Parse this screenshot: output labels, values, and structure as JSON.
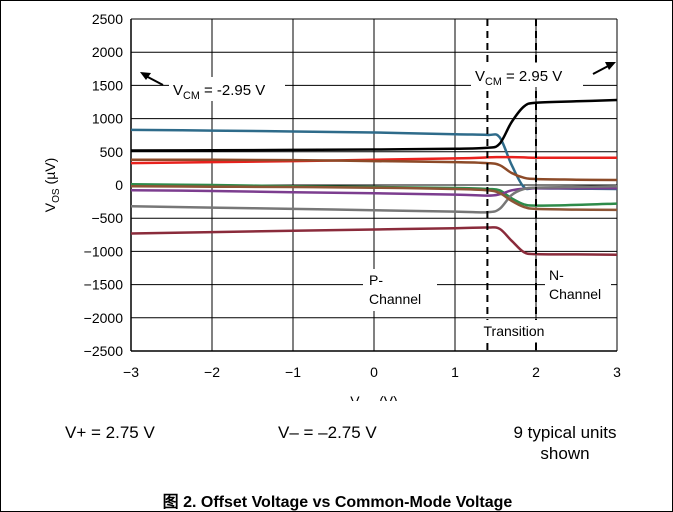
{
  "chart_data": {
    "type": "line",
    "xlabel": {
      "main": "V",
      "sub": "CM",
      "unit": " (V)"
    },
    "ylabel": {
      "main": "V",
      "sub": "OS",
      "unit": " (µV)"
    },
    "xlim": [
      -3,
      3
    ],
    "ylim": [
      -2500,
      2500
    ],
    "xticks": [
      -3,
      -2,
      -1,
      0,
      1,
      2,
      3
    ],
    "xtick_labels": [
      "−3",
      "−2",
      "−1",
      "0",
      "1",
      "2",
      "3"
    ],
    "yticks": [
      -2500,
      -2000,
      -1500,
      -1000,
      -500,
      0,
      500,
      1000,
      1500,
      2000,
      2500
    ],
    "ytick_labels": [
      "−2500",
      "−2000",
      "−1500",
      "−1000",
      "−500",
      "0",
      "500",
      "1000",
      "1500",
      "2000",
      "2500"
    ],
    "grid": true,
    "x": [
      -3,
      -2,
      -1,
      0,
      1,
      1.4,
      1.55,
      1.7,
      1.85,
      2.0,
      2.5,
      3
    ],
    "series": [
      {
        "color": "#2e6b8a",
        "values": [
          830,
          820,
          805,
          790,
          765,
          755,
          720,
          300,
          -30,
          -50,
          -55,
          -60
        ]
      },
      {
        "color": "#000000",
        "values": [
          520,
          522,
          528,
          535,
          545,
          560,
          620,
          950,
          1180,
          1240,
          1260,
          1280
        ]
      },
      {
        "color": "#e8211d",
        "values": [
          330,
          345,
          360,
          380,
          400,
          415,
          420,
          420,
          415,
          410,
          410,
          410
        ]
      },
      {
        "color": "#8c4a28",
        "values": [
          380,
          380,
          375,
          360,
          345,
          330,
          300,
          180,
          110,
          90,
          80,
          75
        ]
      },
      {
        "color": "#2e8b4a",
        "values": [
          10,
          0,
          -20,
          -30,
          -45,
          -60,
          -80,
          -200,
          -290,
          -310,
          -300,
          -280
        ]
      },
      {
        "color": "#7c3d8f",
        "values": [
          -80,
          -90,
          -110,
          -125,
          -145,
          -160,
          -140,
          -80,
          -55,
          -50,
          -50,
          -50
        ]
      },
      {
        "color": "#777777",
        "values": [
          -320,
          -340,
          -360,
          -380,
          -400,
          -410,
          -360,
          -150,
          -60,
          -40,
          -30,
          -20
        ]
      },
      {
        "color": "#8d5536",
        "values": [
          -20,
          -25,
          -30,
          -40,
          -60,
          -80,
          -120,
          -240,
          -330,
          -360,
          -370,
          -375
        ]
      },
      {
        "color": "#8a2b3b",
        "values": [
          -730,
          -710,
          -690,
          -670,
          -650,
          -640,
          -660,
          -840,
          -1010,
          -1040,
          -1045,
          -1050
        ]
      }
    ],
    "markers": [
      {
        "x": 1.4,
        "style": "dashed"
      },
      {
        "x": 2.0,
        "style": "dashed"
      }
    ],
    "annotations": {
      "vcm_left": {
        "main": "V",
        "sub": "CM",
        "rest": " = -2.95 V"
      },
      "vcm_right": {
        "main": "V",
        "sub": "CM",
        "rest": " = 2.95 V"
      },
      "p_channel": [
        "P-",
        "Channel"
      ],
      "n_channel": [
        "N-",
        "Channel"
      ],
      "transition": "Transition"
    }
  },
  "footnotes": {
    "vplus": "V+ = 2.75 V",
    "vminus": "V– = –2.75 V",
    "units": [
      "9 typical units",
      "shown"
    ]
  },
  "caption": "图 2. Offset Voltage vs Common-Mode Voltage"
}
